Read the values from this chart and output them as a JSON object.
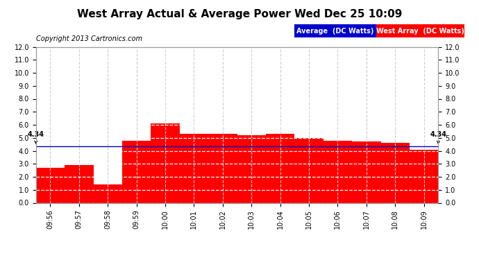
{
  "title": "West Array Actual & Average Power Wed Dec 25 10:09",
  "copyright": "Copyright 2013 Cartronics.com",
  "categories": [
    "09:56",
    "09:57",
    "09:58",
    "09:59",
    "10:00",
    "10:01",
    "10:02",
    "10:03",
    "10:04",
    "10:05",
    "10:06",
    "10:07",
    "10:08",
    "10:09"
  ],
  "bar_values": [
    2.7,
    2.9,
    1.4,
    4.8,
    6.1,
    5.3,
    5.3,
    5.2,
    5.3,
    5.0,
    4.8,
    4.7,
    4.6,
    4.1
  ],
  "avg_value": 4.34,
  "bar_color": "#ff0000",
  "avg_line_color": "#0000cd",
  "background_color": "#ffffff",
  "plot_bg_color": "#ffffff",
  "grid_major_color": "#cccccc",
  "grid_minor_color": "#ffffff",
  "ylim": [
    0,
    12.0
  ],
  "yticks": [
    0.0,
    1.0,
    2.0,
    3.0,
    4.0,
    5.0,
    6.0,
    7.0,
    8.0,
    9.0,
    10.0,
    11.0,
    12.0
  ],
  "legend_avg_label": "Average  (DC Watts)",
  "legend_west_label": "West Array  (DC Watts)",
  "legend_avg_bg": "#0000cc",
  "legend_west_bg": "#ff0000",
  "legend_text_color": "#ffffff",
  "title_fontsize": 11,
  "copyright_fontsize": 7,
  "tick_fontsize": 7,
  "legend_fontsize": 7,
  "avg_annotation": "4.34",
  "ann_fontsize": 7
}
